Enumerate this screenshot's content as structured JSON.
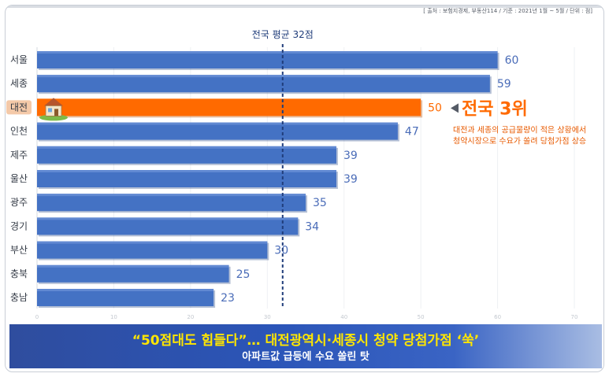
{
  "source_note": "[ 출처 : 보험지경제, 부동산114 / 기준 : 2021년 1월 ~ 5월 / 단위 : 점]",
  "colors": {
    "bar": "#4472c4",
    "highlight_bar": "#ff6a00",
    "avg_line": "#1f3c7a",
    "value_text": "#4a6cb8"
  },
  "chart_data": {
    "type": "bar",
    "orientation": "horizontal",
    "categories": [
      "서울",
      "세종",
      "대전",
      "인천",
      "제주",
      "울산",
      "광주",
      "경기",
      "부산",
      "충북",
      "충남"
    ],
    "values": [
      60,
      59,
      50,
      47,
      39,
      39,
      35,
      34,
      30,
      25,
      23
    ],
    "highlight_category": "대전",
    "x_ticks": [
      "0",
      "10",
      "20",
      "30",
      "40",
      "50",
      "60",
      "70"
    ],
    "xlim": [
      0,
      70
    ],
    "reference_line": {
      "value": 32,
      "label": "전국 평균 32점"
    },
    "annotation": {
      "rank": "전국 3위",
      "note_lines": [
        "대전과 세종의 공급물량이 적은 상황에서",
        "청약시장으로 수요가 쏠려 당첨가점 상승"
      ]
    },
    "grid": true
  },
  "highlight_icon": "house-icon",
  "banner": {
    "title": "“50점대도 힘들다”…  대전광역시·세종시 청약 당첨가점 ‘쑥’",
    "subtitle": "아파트값 급등에 수요 쏠린 탓"
  }
}
